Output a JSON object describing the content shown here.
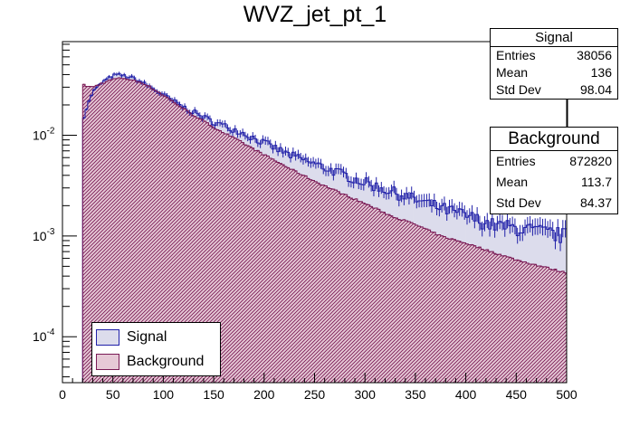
{
  "chart_data": {
    "type": "histogram",
    "title": "WVZ_jet_pt_1",
    "xlabel": "",
    "ylabel": "",
    "xlim": [
      0,
      500
    ],
    "ylim": [
      3.5e-05,
      0.085
    ],
    "yscale": "log",
    "bin_width": 2.5,
    "data_start": 20,
    "x_ticks": [
      "0",
      "50",
      "100",
      "150",
      "200",
      "250",
      "300",
      "350",
      "400",
      "450",
      "500"
    ],
    "y_ticks": [
      {
        "base": "10",
        "exp": "-2",
        "value": 0.01
      },
      {
        "base": "10",
        "exp": "-3",
        "value": 0.001
      },
      {
        "base": "10",
        "exp": "-4",
        "value": 0.0001
      }
    ],
    "colors": {
      "signal_line": "#1f1fa8",
      "signal_fill": "#dcdcec",
      "background_line": "#7a1a55",
      "background_fill": "#e6c9d6"
    },
    "series": [
      {
        "name": "Signal",
        "x": [
          20,
          25,
          30,
          40,
          50,
          55,
          60,
          70,
          80,
          90,
          100,
          120,
          150,
          175,
          200,
          225,
          250,
          275,
          300,
          325,
          350,
          375,
          400,
          425,
          450,
          475,
          500
        ],
        "y": [
          0.014,
          0.02,
          0.027,
          0.034,
          0.039,
          0.04,
          0.039,
          0.037,
          0.033,
          0.029,
          0.025,
          0.019,
          0.0135,
          0.011,
          0.0084,
          0.0064,
          0.0052,
          0.0042,
          0.0034,
          0.0028,
          0.0023,
          0.0019,
          0.0016,
          0.0013,
          0.0012,
          0.0011,
          0.001
        ]
      },
      {
        "name": "Background",
        "x": [
          20,
          22.5,
          30,
          40,
          50,
          60,
          70,
          80,
          100,
          125,
          150,
          175,
          200,
          225,
          250,
          275,
          300,
          325,
          350,
          375,
          400,
          425,
          450,
          475,
          500
        ],
        "y": [
          0.032,
          0.031,
          0.03,
          0.033,
          0.036,
          0.037,
          0.035,
          0.033,
          0.025,
          0.017,
          0.012,
          0.0088,
          0.0064,
          0.0047,
          0.0035,
          0.0027,
          0.0021,
          0.0016,
          0.0013,
          0.001,
          0.00085,
          0.0007,
          0.00058,
          0.0005,
          0.00043
        ]
      }
    ],
    "stats": {
      "signal": {
        "title": "Signal",
        "rows": [
          {
            "label": "Entries",
            "value": "38056"
          },
          {
            "label": "Mean",
            "value": "136"
          },
          {
            "label": "Std Dev",
            "value": "98.04"
          }
        ]
      },
      "background": {
        "title": "Background",
        "rows": [
          {
            "label": "Entries",
            "value": "872820"
          },
          {
            "label": "Mean",
            "value": "113.7"
          },
          {
            "label": "Std Dev",
            "value": "84.37"
          }
        ]
      }
    },
    "legend": [
      {
        "label": "Signal"
      },
      {
        "label": "Background"
      }
    ]
  }
}
